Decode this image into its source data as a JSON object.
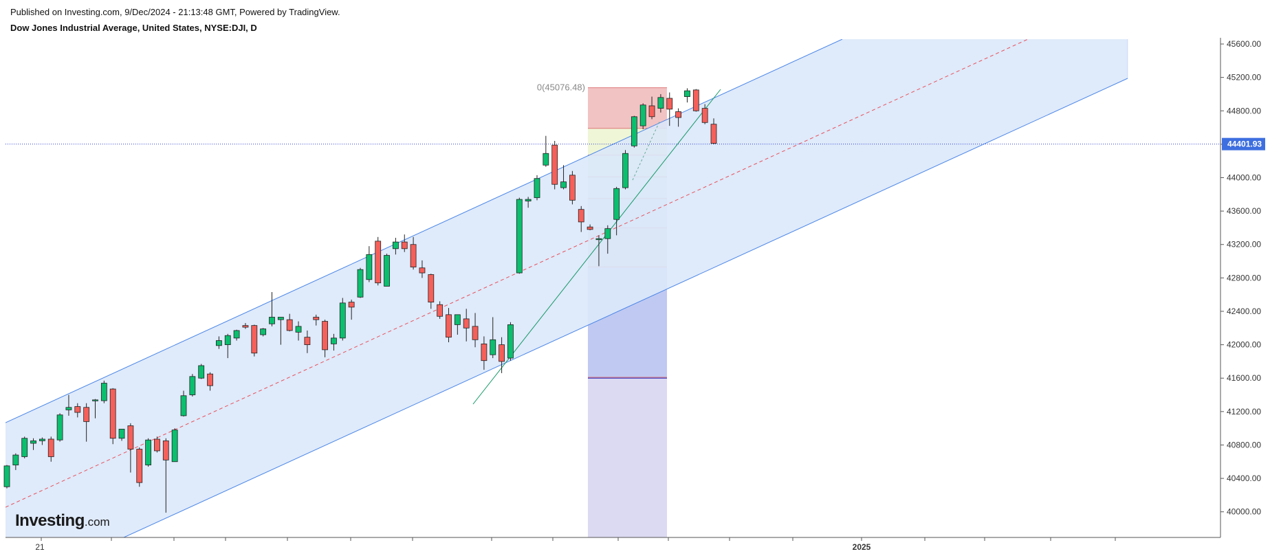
{
  "header": {
    "published": "Published on Investing.com, 9/Dec/2024 - 21:13:48 GMT, Powered by TradingView.",
    "title": "Dow Jones Industrial Average, United States, NYSE:DJI, D"
  },
  "logo": {
    "brand": "Investing",
    "tld": ".com"
  },
  "chart_data": {
    "type": "candlestick",
    "symbol": "NYSE:DJI",
    "interval": "D",
    "ylim": [
      39600,
      45700
    ],
    "y_ticks": [
      "45600.00",
      "45200.00",
      "44800.00",
      "44400.00",
      "44000.00",
      "43600.00",
      "43200.00",
      "42800.00",
      "42400.00",
      "42000.00",
      "41600.00",
      "41200.00",
      "40800.00",
      "40400.00",
      "40000.00"
    ],
    "x_labels": [
      "21",
      "2025"
    ],
    "current_price": 44401.93,
    "current_price_label": "44401.93",
    "colors": {
      "up": "#0bbf6e",
      "down": "#f5605a",
      "channel": "#4a86e8",
      "channel_fill": "#dce8f9",
      "midline": "#e8505b",
      "price_line": "#2f3fd1",
      "price_label_bg": "#3d6fe0",
      "trend": "#119966"
    },
    "candles": [
      {
        "o": 40300,
        "h": 40560,
        "l": 40280,
        "c": 40550
      },
      {
        "o": 40560,
        "h": 40700,
        "l": 40500,
        "c": 40680
      },
      {
        "o": 40660,
        "h": 40900,
        "l": 40640,
        "c": 40880
      },
      {
        "o": 40820,
        "h": 40880,
        "l": 40740,
        "c": 40850
      },
      {
        "o": 40850,
        "h": 40890,
        "l": 40800,
        "c": 40870
      },
      {
        "o": 40870,
        "h": 40900,
        "l": 40600,
        "c": 40660
      },
      {
        "o": 40860,
        "h": 41180,
        "l": 40840,
        "c": 41160
      },
      {
        "o": 41220,
        "h": 41400,
        "l": 41150,
        "c": 41250
      },
      {
        "o": 41260,
        "h": 41300,
        "l": 41130,
        "c": 41190
      },
      {
        "o": 41250,
        "h": 41300,
        "l": 40840,
        "c": 41080
      },
      {
        "o": 41330,
        "h": 41350,
        "l": 41120,
        "c": 41340
      },
      {
        "o": 41330,
        "h": 41570,
        "l": 41300,
        "c": 41540
      },
      {
        "o": 41470,
        "h": 41480,
        "l": 40810,
        "c": 40880
      },
      {
        "o": 40880,
        "h": 40990,
        "l": 40850,
        "c": 40990
      },
      {
        "o": 41030,
        "h": 41060,
        "l": 40470,
        "c": 40750
      },
      {
        "o": 40750,
        "h": 40770,
        "l": 40300,
        "c": 40350
      },
      {
        "o": 40560,
        "h": 40880,
        "l": 40540,
        "c": 40860
      },
      {
        "o": 40870,
        "h": 40900,
        "l": 40710,
        "c": 40730
      },
      {
        "o": 40850,
        "h": 40880,
        "l": 39990,
        "c": 40620
      },
      {
        "o": 40600,
        "h": 41000,
        "l": 40620,
        "c": 40980
      },
      {
        "o": 41150,
        "h": 41450,
        "l": 41140,
        "c": 41390
      },
      {
        "o": 41400,
        "h": 41650,
        "l": 41380,
        "c": 41620
      },
      {
        "o": 41600,
        "h": 41770,
        "l": 41590,
        "c": 41750
      },
      {
        "o": 41650,
        "h": 41670,
        "l": 41450,
        "c": 41510
      },
      {
        "o": 41990,
        "h": 42100,
        "l": 41950,
        "c": 42050
      },
      {
        "o": 42000,
        "h": 42130,
        "l": 41840,
        "c": 42110
      },
      {
        "o": 42080,
        "h": 42180,
        "l": 42050,
        "c": 42170
      },
      {
        "o": 42230,
        "h": 42260,
        "l": 42190,
        "c": 42210
      },
      {
        "o": 42230,
        "h": 42240,
        "l": 41860,
        "c": 41900
      },
      {
        "o": 42120,
        "h": 42200,
        "l": 42100,
        "c": 42190
      },
      {
        "o": 42250,
        "h": 42630,
        "l": 42220,
        "c": 42330
      },
      {
        "o": 42300,
        "h": 42320,
        "l": 42000,
        "c": 42330
      },
      {
        "o": 42300,
        "h": 42370,
        "l": 42160,
        "c": 42170
      },
      {
        "o": 42150,
        "h": 42280,
        "l": 42050,
        "c": 42220
      },
      {
        "o": 42090,
        "h": 42170,
        "l": 41900,
        "c": 42000
      },
      {
        "o": 42330,
        "h": 42360,
        "l": 42230,
        "c": 42300
      },
      {
        "o": 42280,
        "h": 42300,
        "l": 41850,
        "c": 41940
      },
      {
        "o": 42010,
        "h": 42130,
        "l": 41930,
        "c": 42080
      },
      {
        "o": 42080,
        "h": 42560,
        "l": 42050,
        "c": 42500
      },
      {
        "o": 42510,
        "h": 42540,
        "l": 42300,
        "c": 42450
      },
      {
        "o": 42570,
        "h": 42920,
        "l": 42560,
        "c": 42900
      },
      {
        "o": 42780,
        "h": 43180,
        "l": 42750,
        "c": 43080
      },
      {
        "o": 43240,
        "h": 43290,
        "l": 42710,
        "c": 42740
      },
      {
        "o": 42700,
        "h": 43090,
        "l": 42720,
        "c": 43070
      },
      {
        "o": 43150,
        "h": 43280,
        "l": 43080,
        "c": 43230
      },
      {
        "o": 43230,
        "h": 43320,
        "l": 43110,
        "c": 43150
      },
      {
        "o": 43200,
        "h": 43290,
        "l": 42900,
        "c": 42930
      },
      {
        "o": 42920,
        "h": 43010,
        "l": 42800,
        "c": 42860
      },
      {
        "o": 42840,
        "h": 42850,
        "l": 42430,
        "c": 42510
      },
      {
        "o": 42480,
        "h": 42520,
        "l": 42310,
        "c": 42340
      },
      {
        "o": 42360,
        "h": 42440,
        "l": 42030,
        "c": 42090
      },
      {
        "o": 42240,
        "h": 42350,
        "l": 42120,
        "c": 42360
      },
      {
        "o": 42310,
        "h": 42430,
        "l": 42040,
        "c": 42200
      },
      {
        "o": 42220,
        "h": 42380,
        "l": 41970,
        "c": 42060
      },
      {
        "o": 42010,
        "h": 42100,
        "l": 41700,
        "c": 41810
      },
      {
        "o": 41880,
        "h": 42330,
        "l": 41840,
        "c": 42060
      },
      {
        "o": 42000,
        "h": 42090,
        "l": 41660,
        "c": 41800
      },
      {
        "o": 41840,
        "h": 42270,
        "l": 41810,
        "c": 42240
      },
      {
        "o": 42860,
        "h": 43760,
        "l": 42850,
        "c": 43740
      },
      {
        "o": 43720,
        "h": 43770,
        "l": 43640,
        "c": 43740
      },
      {
        "o": 43760,
        "h": 44030,
        "l": 43730,
        "c": 43990
      },
      {
        "o": 44150,
        "h": 44500,
        "l": 44130,
        "c": 44290
      },
      {
        "o": 44390,
        "h": 44440,
        "l": 43860,
        "c": 43920
      },
      {
        "o": 43880,
        "h": 44150,
        "l": 43860,
        "c": 43950
      },
      {
        "o": 44030,
        "h": 44080,
        "l": 43680,
        "c": 43730
      },
      {
        "o": 43620,
        "h": 43660,
        "l": 43350,
        "c": 43470
      },
      {
        "o": 43410,
        "h": 43440,
        "l": 43370,
        "c": 43380
      },
      {
        "o": 43260,
        "h": 43310,
        "l": 42940,
        "c": 43270
      },
      {
        "o": 43270,
        "h": 43430,
        "l": 43090,
        "c": 43390
      },
      {
        "o": 43500,
        "h": 43890,
        "l": 43310,
        "c": 43870
      },
      {
        "o": 43880,
        "h": 44330,
        "l": 43860,
        "c": 44290
      },
      {
        "o": 44380,
        "h": 44740,
        "l": 44360,
        "c": 44730
      },
      {
        "o": 44620,
        "h": 44890,
        "l": 44580,
        "c": 44870
      },
      {
        "o": 44860,
        "h": 44970,
        "l": 44700,
        "c": 44730
      },
      {
        "o": 44830,
        "h": 45000,
        "l": 44780,
        "c": 44960
      },
      {
        "o": 44950,
        "h": 45020,
        "l": 44620,
        "c": 44820
      },
      {
        "o": 44790,
        "h": 44830,
        "l": 44610,
        "c": 44720
      },
      {
        "o": 44970,
        "h": 45070,
        "l": 44900,
        "c": 45040
      },
      {
        "o": 45050,
        "h": 45060,
        "l": 44790,
        "c": 44800
      },
      {
        "o": 44830,
        "h": 44880,
        "l": 44640,
        "c": 44660
      },
      {
        "o": 44640,
        "h": 44710,
        "l": 44400,
        "c": 44410
      }
    ],
    "fib": {
      "label": "0(45076.48)",
      "top": 45076.48,
      "bottom": 41600,
      "levels": [
        45076.48,
        44590,
        44270,
        44010,
        43750,
        43400,
        42930,
        41610,
        39650
      ],
      "colors": [
        "#f0b8b8",
        "#ecf4d0",
        "#d8f0d2",
        "#c9ebe2",
        "#c3e0ee",
        "#c9ccd8",
        "#b5c0f0",
        "#d6d4f0",
        "#f2c4c4"
      ]
    }
  }
}
